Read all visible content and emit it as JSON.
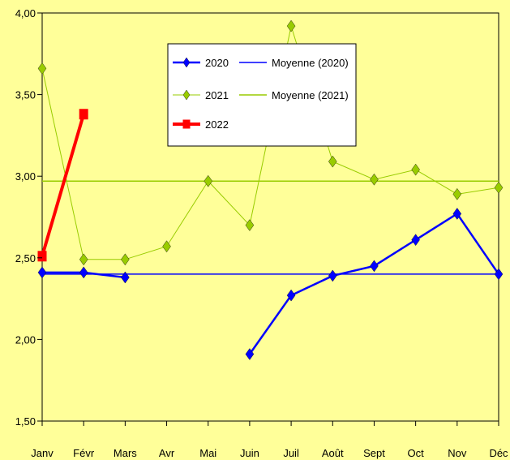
{
  "chart_data": {
    "type": "line",
    "title": "",
    "xlabel": "",
    "ylabel": "",
    "categories": [
      "Janv",
      "Févr",
      "Mars",
      "Avr",
      "Mai",
      "Juin",
      "Juil",
      "Août",
      "Sept",
      "Oct",
      "Nov",
      "Déc"
    ],
    "ylim": [
      1.5,
      4.0
    ],
    "yticks": [
      "1,50",
      "2,00",
      "2,50",
      "3,00",
      "3,50",
      "4,00"
    ],
    "ytick_values": [
      1.5,
      2.0,
      2.5,
      3.0,
      3.5,
      4.0
    ],
    "grid": false,
    "legend_position": "top-center",
    "series": [
      {
        "name": "2020",
        "color": "#0000FF",
        "marker": "diamond",
        "values": [
          2.41,
          2.41,
          2.38,
          null,
          null,
          1.91,
          2.27,
          2.39,
          2.45,
          2.61,
          2.77,
          2.4
        ]
      },
      {
        "name": "2021",
        "color": "#99CC00",
        "marker": "diamond",
        "values": [
          3.66,
          2.49,
          2.49,
          2.57,
          2.97,
          2.7,
          3.92,
          3.09,
          2.98,
          3.04,
          2.89,
          2.93
        ]
      },
      {
        "name": "2022",
        "color": "#FF0000",
        "marker": "square",
        "values": [
          2.51,
          3.38,
          null,
          null,
          null,
          null,
          null,
          null,
          null,
          null,
          null,
          null
        ]
      }
    ],
    "reference_lines": [
      {
        "name": "Moyenne (2020)",
        "value": 2.4,
        "color": "#0000FF"
      },
      {
        "name": "Moyenne (2021)",
        "value": 2.97,
        "color": "#99CC00"
      }
    ]
  }
}
